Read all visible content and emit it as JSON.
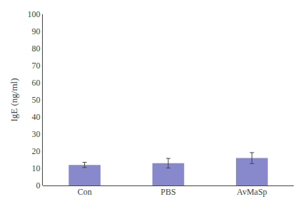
{
  "chart_data": {
    "type": "bar",
    "categories": [
      "Con",
      "PBS",
      "AvMaSp"
    ],
    "values": [
      12.0,
      13.0,
      16.0
    ],
    "errors": [
      1.5,
      2.8,
      3.2
    ],
    "color": "#8888cc",
    "ylabel": "IgE (ng/ml)",
    "ylim": [
      0,
      100
    ],
    "yticks": [
      0,
      10,
      20,
      30,
      40,
      50,
      60,
      70,
      80,
      90,
      100
    ],
    "grid": false
  }
}
